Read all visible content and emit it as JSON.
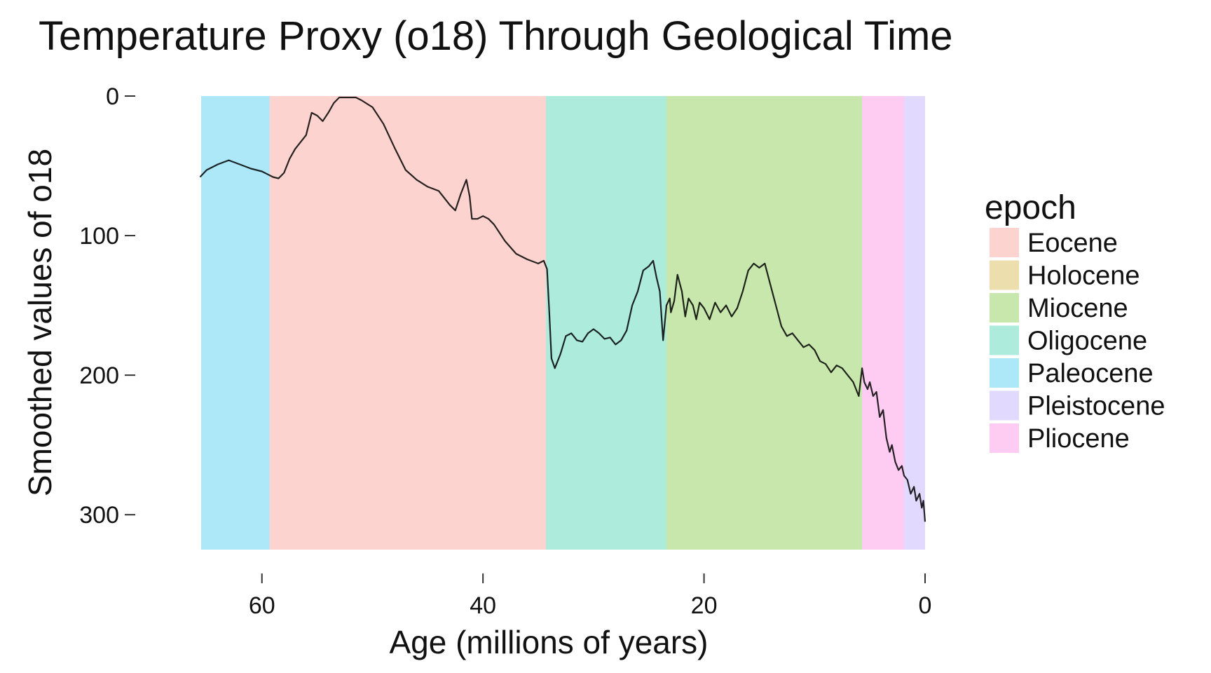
{
  "chart_data": {
    "type": "line",
    "title": "Temperature Proxy (o18) Through Geological Time",
    "xlabel": "Age (millions of years)",
    "ylabel": "Smoothed values of o18",
    "xlim": [
      65.5,
      0
    ],
    "x_reversed": true,
    "ylim": [
      0,
      325
    ],
    "y_reversed": true,
    "x_ticks": [
      60,
      40,
      20,
      0
    ],
    "y_ticks": [
      0,
      100,
      200,
      300
    ],
    "grid": false,
    "legend": {
      "title": "epoch",
      "position": "right",
      "entries": [
        {
          "label": "Eocene",
          "color": "#f8766d"
        },
        {
          "label": "Holocene",
          "color": "#c49a00"
        },
        {
          "label": "Miocene",
          "color": "#53b400"
        },
        {
          "label": "Oligocene",
          "color": "#00c094"
        },
        {
          "label": "Paleocene",
          "color": "#00b6eb"
        },
        {
          "label": "Pleistocene",
          "color": "#a58aff"
        },
        {
          "label": "Pliocene",
          "color": "#fb61d7"
        }
      ]
    },
    "epoch_bands": [
      {
        "epoch": "Paleocene",
        "start": 65.5,
        "end": 59.3
      },
      {
        "epoch": "Eocene",
        "start": 59.3,
        "end": 34.3
      },
      {
        "epoch": "Oligocene",
        "start": 34.3,
        "end": 23.4
      },
      {
        "epoch": "Miocene",
        "start": 23.4,
        "end": 5.7
      },
      {
        "epoch": "Pliocene",
        "start": 5.7,
        "end": 1.9
      },
      {
        "epoch": "Pleistocene",
        "start": 1.9,
        "end": 0.0
      }
    ],
    "series": [
      {
        "line_color": "#000000",
        "x": [
          65.6,
          65.0,
          64.0,
          63.0,
          62.0,
          61.0,
          60.0,
          59.0,
          58.5,
          58.0,
          57.5,
          57.0,
          56.0,
          55.5,
          55.0,
          54.5,
          54.0,
          53.5,
          53.0,
          52.5,
          52.0,
          51.5,
          51.0,
          50.0,
          49.0,
          48.0,
          47.0,
          46.0,
          45.0,
          44.0,
          43.0,
          42.5,
          42.0,
          41.5,
          41.2,
          41.0,
          40.5,
          40.0,
          39.5,
          39.0,
          38.0,
          37.0,
          36.0,
          35.0,
          34.5,
          34.2,
          34.0,
          33.8,
          33.5,
          33.0,
          32.5,
          32.0,
          31.5,
          31.0,
          30.5,
          30.0,
          29.5,
          29.0,
          28.5,
          28.0,
          27.5,
          27.0,
          26.5,
          26.0,
          25.5,
          25.0,
          24.6,
          24.3,
          24.0,
          23.7,
          23.4,
          23.1,
          23.0,
          22.7,
          22.4,
          22.0,
          21.7,
          21.4,
          21.0,
          20.7,
          20.4,
          20.0,
          19.5,
          19.0,
          18.5,
          18.0,
          17.5,
          17.0,
          16.5,
          16.0,
          15.5,
          15.0,
          14.5,
          14.0,
          13.5,
          13.0,
          12.5,
          12.0,
          11.5,
          11.0,
          10.5,
          10.0,
          9.5,
          9.0,
          8.5,
          8.0,
          7.5,
          7.0,
          6.5,
          6.0,
          5.7,
          5.5,
          5.2,
          5.0,
          4.7,
          4.4,
          4.1,
          3.8,
          3.5,
          3.2,
          3.0,
          2.7,
          2.4,
          2.1,
          1.9,
          1.6,
          1.3,
          1.0,
          0.8,
          0.5,
          0.3,
          0.15,
          0.0
        ],
        "y": [
          58,
          53,
          49,
          46,
          49,
          52,
          54,
          58,
          59,
          55,
          45,
          38,
          28,
          12,
          14,
          18,
          12,
          5,
          1,
          1,
          1,
          1,
          3,
          8,
          20,
          37,
          53,
          60,
          65,
          68,
          78,
          82,
          70,
          60,
          72,
          88,
          88,
          86,
          88,
          92,
          104,
          113,
          117,
          120,
          118,
          124,
          155,
          188,
          195,
          185,
          172,
          170,
          175,
          176,
          170,
          167,
          170,
          174,
          173,
          178,
          175,
          168,
          150,
          140,
          125,
          122,
          118,
          130,
          140,
          175,
          150,
          145,
          155,
          147,
          128,
          140,
          158,
          145,
          150,
          160,
          148,
          152,
          160,
          148,
          155,
          150,
          158,
          152,
          140,
          125,
          120,
          123,
          120,
          135,
          150,
          165,
          172,
          170,
          175,
          180,
          178,
          182,
          190,
          192,
          198,
          193,
          195,
          200,
          205,
          215,
          195,
          205,
          210,
          205,
          215,
          212,
          230,
          225,
          245,
          255,
          250,
          262,
          268,
          265,
          272,
          275,
          285,
          280,
          290,
          285,
          295,
          290,
          305
        ]
      }
    ]
  }
}
